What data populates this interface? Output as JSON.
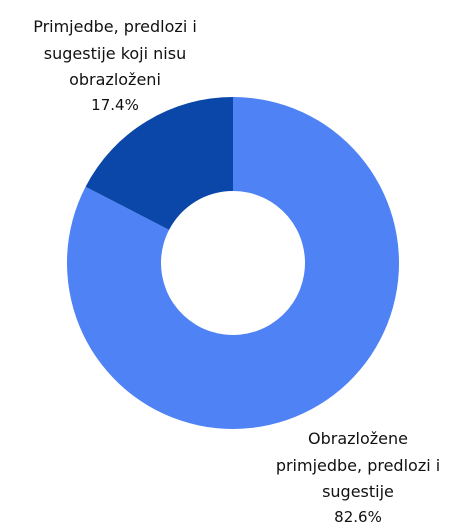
{
  "chart_data": {
    "type": "donut",
    "categories": [
      "Obrazložene\nprimjedbe, predlozi i\nsugestije",
      "Primjedbe, predlozi i\nsugestije koji nisu\nobrazloženi"
    ],
    "values": [
      82.6,
      17.4
    ],
    "value_labels": [
      "82.6%",
      "17.4%"
    ],
    "colors": [
      "#4f82f4",
      "#0a47a8"
    ]
  }
}
